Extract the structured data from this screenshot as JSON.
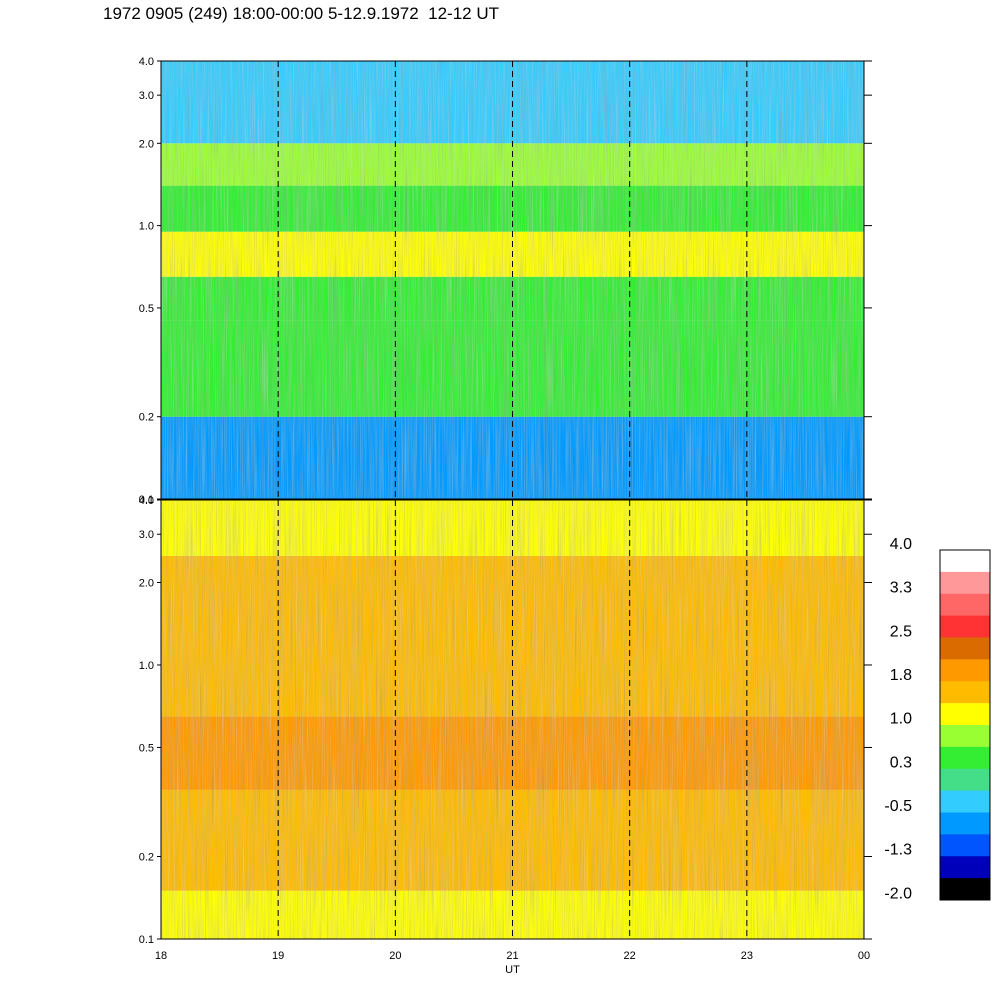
{
  "title": "1972 0905 (249) 18:00-00:00 5-12.9.1972  12-12 UT",
  "chart_data": [
    {
      "type": "heatmap",
      "panel": "upper",
      "x_ticks": [
        "18",
        "19",
        "20",
        "21",
        "22",
        "23",
        "00"
      ],
      "y_ticks": [
        {
          "label": "0.1",
          "value": 0.1
        },
        {
          "label": "0.2",
          "value": 0.2
        },
        {
          "label": "0.5",
          "value": 0.5
        },
        {
          "label": "1.0",
          "value": 1.0
        },
        {
          "label": "2.0",
          "value": 2.0
        },
        {
          "label": "3.0",
          "value": 3.0
        },
        {
          "label": "4.0",
          "value": 4.0
        }
      ],
      "y_scale": "log",
      "ylim": [
        0.1,
        4.0
      ],
      "xlim": [
        18,
        24
      ],
      "vertical_dashed_lines": [
        19,
        20,
        21,
        22,
        23
      ],
      "bands": [
        {
          "y_from": 0.1,
          "y_to": 0.2,
          "level": -0.5
        },
        {
          "y_from": 0.2,
          "y_to": 0.45,
          "level": 0.3
        },
        {
          "y_from": 0.45,
          "y_to": 0.65,
          "level": 0.6
        },
        {
          "y_from": 0.65,
          "y_to": 0.95,
          "level": 1.2
        },
        {
          "y_from": 0.95,
          "y_to": 1.4,
          "level": 0.4
        },
        {
          "y_from": 1.4,
          "y_to": 2.0,
          "level": 0.9
        },
        {
          "y_from": 2.0,
          "y_to": 4.0,
          "level": -0.3
        }
      ]
    },
    {
      "type": "heatmap",
      "panel": "lower",
      "x_ticks": [
        "18",
        "19",
        "20",
        "21",
        "22",
        "23",
        "00"
      ],
      "xlabel": "UT",
      "y_ticks": [
        {
          "label": "0.1",
          "value": 0.1
        },
        {
          "label": "0.2",
          "value": 0.2
        },
        {
          "label": "0.5",
          "value": 0.5
        },
        {
          "label": "1.0",
          "value": 1.0
        },
        {
          "label": "2.0",
          "value": 2.0
        },
        {
          "label": "3.0",
          "value": 3.0
        },
        {
          "label": "4.0",
          "value": 4.0
        }
      ],
      "y_scale": "log",
      "ylim": [
        0.1,
        4.0
      ],
      "xlim": [
        18,
        24
      ],
      "vertical_dashed_lines": [
        19,
        20,
        21,
        22,
        23
      ],
      "bands": [
        {
          "y_from": 0.1,
          "y_to": 0.15,
          "level": 1.2
        },
        {
          "y_from": 0.15,
          "y_to": 0.35,
          "level": 1.7
        },
        {
          "y_from": 0.35,
          "y_to": 0.65,
          "level": 2.1
        },
        {
          "y_from": 0.65,
          "y_to": 2.5,
          "level": 1.6
        },
        {
          "y_from": 2.5,
          "y_to": 4.0,
          "level": 1.1
        }
      ]
    }
  ],
  "colorbar": {
    "labels": [
      "4.0",
      "3.3",
      "2.5",
      "1.8",
      "1.0",
      "0.3",
      "-0.5",
      "-1.3",
      "-2.0"
    ],
    "colors": [
      "#ffffff",
      "#ff9999",
      "#ff6666",
      "#ff3333",
      "#d96b00",
      "#ff9900",
      "#ffbb00",
      "#ffff00",
      "#99ff33",
      "#33ee33",
      "#44dd88",
      "#33ccff",
      "#0099ff",
      "#0055ff",
      "#0000bb",
      "#000000"
    ],
    "range": [
      -2.0,
      4.0
    ]
  }
}
